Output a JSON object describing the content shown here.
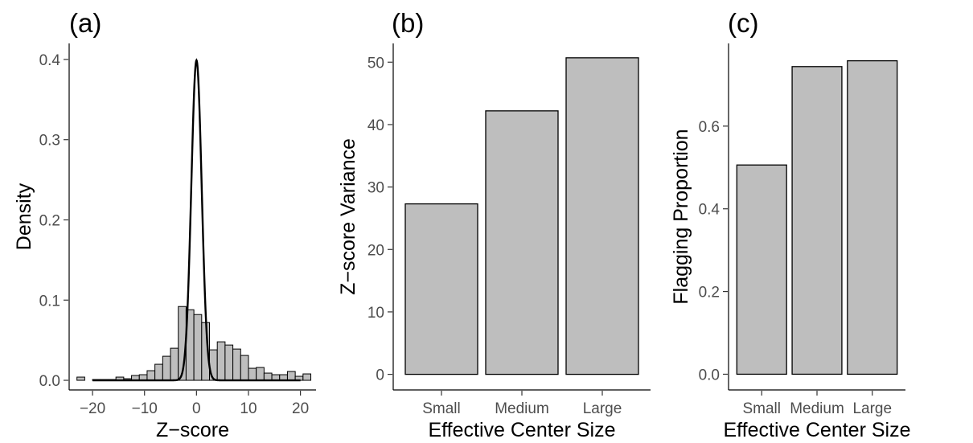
{
  "chart_data": [
    {
      "type": "bar",
      "subtype": "histogram-with-density",
      "panel_label": "(a)",
      "xlabel": "Z−score",
      "ylabel": "Density",
      "xlim": [
        -24.5,
        23
      ],
      "ylim": [
        -0.012,
        0.42
      ],
      "xticks": [
        -20,
        -10,
        0,
        10,
        20
      ],
      "yticks": [
        0.0,
        0.1,
        0.2,
        0.3,
        0.4
      ],
      "x_tick_labels": [
        "−20",
        "−10",
        "0",
        "10",
        "20"
      ],
      "y_tick_labels": [
        "0.0",
        "0.1",
        "0.2",
        "0.3",
        "0.4"
      ],
      "bin_width": 1.5,
      "bins_start": [
        -23,
        -21.5,
        -20,
        -18.5,
        -17,
        -15.5,
        -14,
        -12.5,
        -11,
        -9.5,
        -8,
        -6.5,
        -5,
        -3.5,
        -2,
        -0.5,
        1,
        2.5,
        4,
        5.5,
        7,
        8.5,
        10,
        11.5,
        13,
        14.5,
        16,
        17.5,
        19,
        20.5
      ],
      "densities": [
        0.004,
        0.0,
        0.001,
        0.001,
        0.001,
        0.004,
        0.002,
        0.006,
        0.007,
        0.012,
        0.02,
        0.03,
        0.04,
        0.092,
        0.088,
        0.082,
        0.072,
        0.038,
        0.048,
        0.044,
        0.039,
        0.031,
        0.015,
        0.016,
        0.009,
        0.007,
        0.007,
        0.011,
        0.005,
        0.008
      ],
      "bar_color": "#bebebe",
      "density_curve": {
        "distribution": "standard normal",
        "mean": 0,
        "sd": 1,
        "range": [
          -20,
          20
        ],
        "color": "#000000"
      },
      "grid": false
    },
    {
      "type": "bar",
      "panel_label": "(b)",
      "categories": [
        "Small",
        "Medium",
        "Large"
      ],
      "values": [
        27.3,
        42.2,
        50.7
      ],
      "xlabel": "Effective Center Size",
      "ylabel": "Z−score Variance",
      "ylim": [
        -2.5,
        53
      ],
      "yticks": [
        0,
        10,
        20,
        30,
        40,
        50
      ],
      "y_tick_labels": [
        "0",
        "10",
        "20",
        "30",
        "40",
        "50"
      ],
      "bar_color": "#bebebe",
      "grid": false
    },
    {
      "type": "bar",
      "panel_label": "(c)",
      "categories": [
        "Small",
        "Medium",
        "Large"
      ],
      "values": [
        0.506,
        0.744,
        0.758
      ],
      "xlabel": "Effective Center Size",
      "ylabel": "Flagging Proportion",
      "ylim": [
        -0.038,
        0.8
      ],
      "yticks": [
        0.0,
        0.2,
        0.4,
        0.6
      ],
      "y_tick_labels": [
        "0.0",
        "0.2",
        "0.4",
        "0.6"
      ],
      "bar_color": "#bebebe",
      "grid": false
    }
  ]
}
